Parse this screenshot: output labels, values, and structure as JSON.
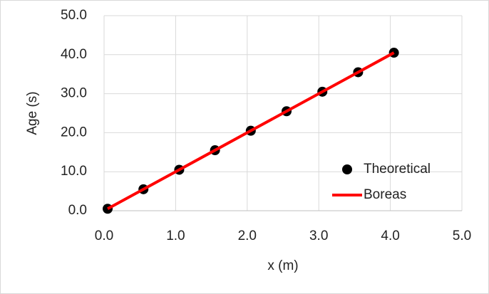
{
  "chart_data": {
    "type": "scatter",
    "x_label": "x (m)",
    "y_label": "Age (s)",
    "xlim": [
      0,
      5
    ],
    "ylim": [
      0,
      50
    ],
    "xticks": [
      {
        "value": 0,
        "label": "0.0"
      },
      {
        "value": 1,
        "label": "1.0"
      },
      {
        "value": 2,
        "label": "2.0"
      },
      {
        "value": 3,
        "label": "3.0"
      },
      {
        "value": 4,
        "label": "4.0"
      },
      {
        "value": 5,
        "label": "5.0"
      }
    ],
    "yticks": [
      {
        "value": 0,
        "label": "0.0"
      },
      {
        "value": 10,
        "label": "10.0"
      },
      {
        "value": 20,
        "label": "20.0"
      },
      {
        "value": 30,
        "label": "30.0"
      },
      {
        "value": 40,
        "label": "40.0"
      },
      {
        "value": 50,
        "label": "50.0"
      }
    ],
    "grid": true,
    "legend": "lower-right",
    "series": [
      {
        "name": "Theoretical",
        "color": "#000000",
        "style": "markers",
        "x": [
          0.05,
          0.55,
          1.05,
          1.55,
          2.05,
          2.55,
          3.05,
          3.55,
          4.05
        ],
        "values": [
          0.5,
          5.5,
          10.5,
          15.5,
          20.5,
          25.5,
          30.5,
          35.5,
          40.5
        ]
      },
      {
        "name": "Boreas",
        "color": "#ff0000",
        "style": "line",
        "x": [
          0.05,
          0.55,
          1.05,
          1.55,
          2.05,
          2.55,
          3.05,
          3.55,
          4.05
        ],
        "values": [
          0.5,
          5.5,
          10.5,
          15.5,
          20.5,
          25.5,
          30.5,
          35.5,
          40.5
        ]
      }
    ]
  }
}
